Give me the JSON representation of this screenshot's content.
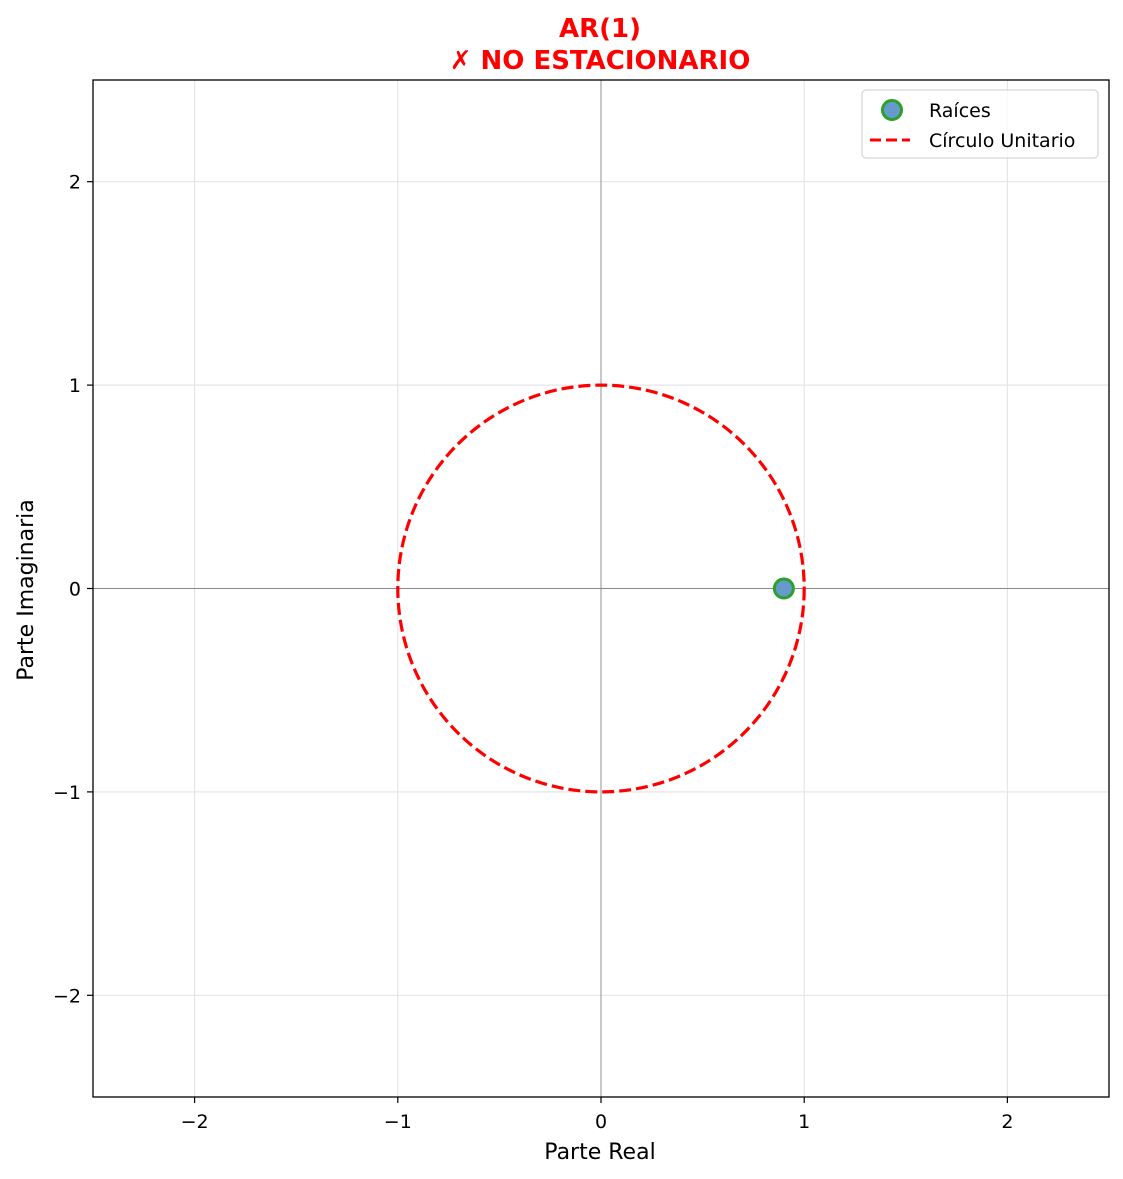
{
  "chart_data": {
    "type": "scatter",
    "title_line1": "AR(1)",
    "title_line2": "✗ NO ESTACIONARIO",
    "title_color": "#ff0000",
    "xlabel": "Parte Real",
    "ylabel": "Parte Imaginaria",
    "xlim": [
      -2.5,
      2.5
    ],
    "ylim": [
      -2.5,
      2.5
    ],
    "x_ticks": [
      -2,
      -1,
      0,
      1,
      2
    ],
    "y_ticks": [
      -2,
      -1,
      0,
      1,
      2
    ],
    "x_tick_labels": [
      "−2",
      "−1",
      "0",
      "1",
      "2"
    ],
    "y_tick_labels": [
      "−2",
      "−1",
      "0",
      "1",
      "2"
    ],
    "grid": true,
    "legend_position": "top-right",
    "series": [
      {
        "name": "Raíces",
        "kind": "points",
        "points": [
          {
            "x": 0.9,
            "y": 0.0
          }
        ],
        "fill_color": "#6699cc",
        "edge_color": "#2ca02c"
      },
      {
        "name": "Círculo Unitario",
        "kind": "circle",
        "center": [
          0,
          0
        ],
        "radius": 1,
        "color": "#ff0000",
        "style": "dashed"
      }
    ]
  }
}
